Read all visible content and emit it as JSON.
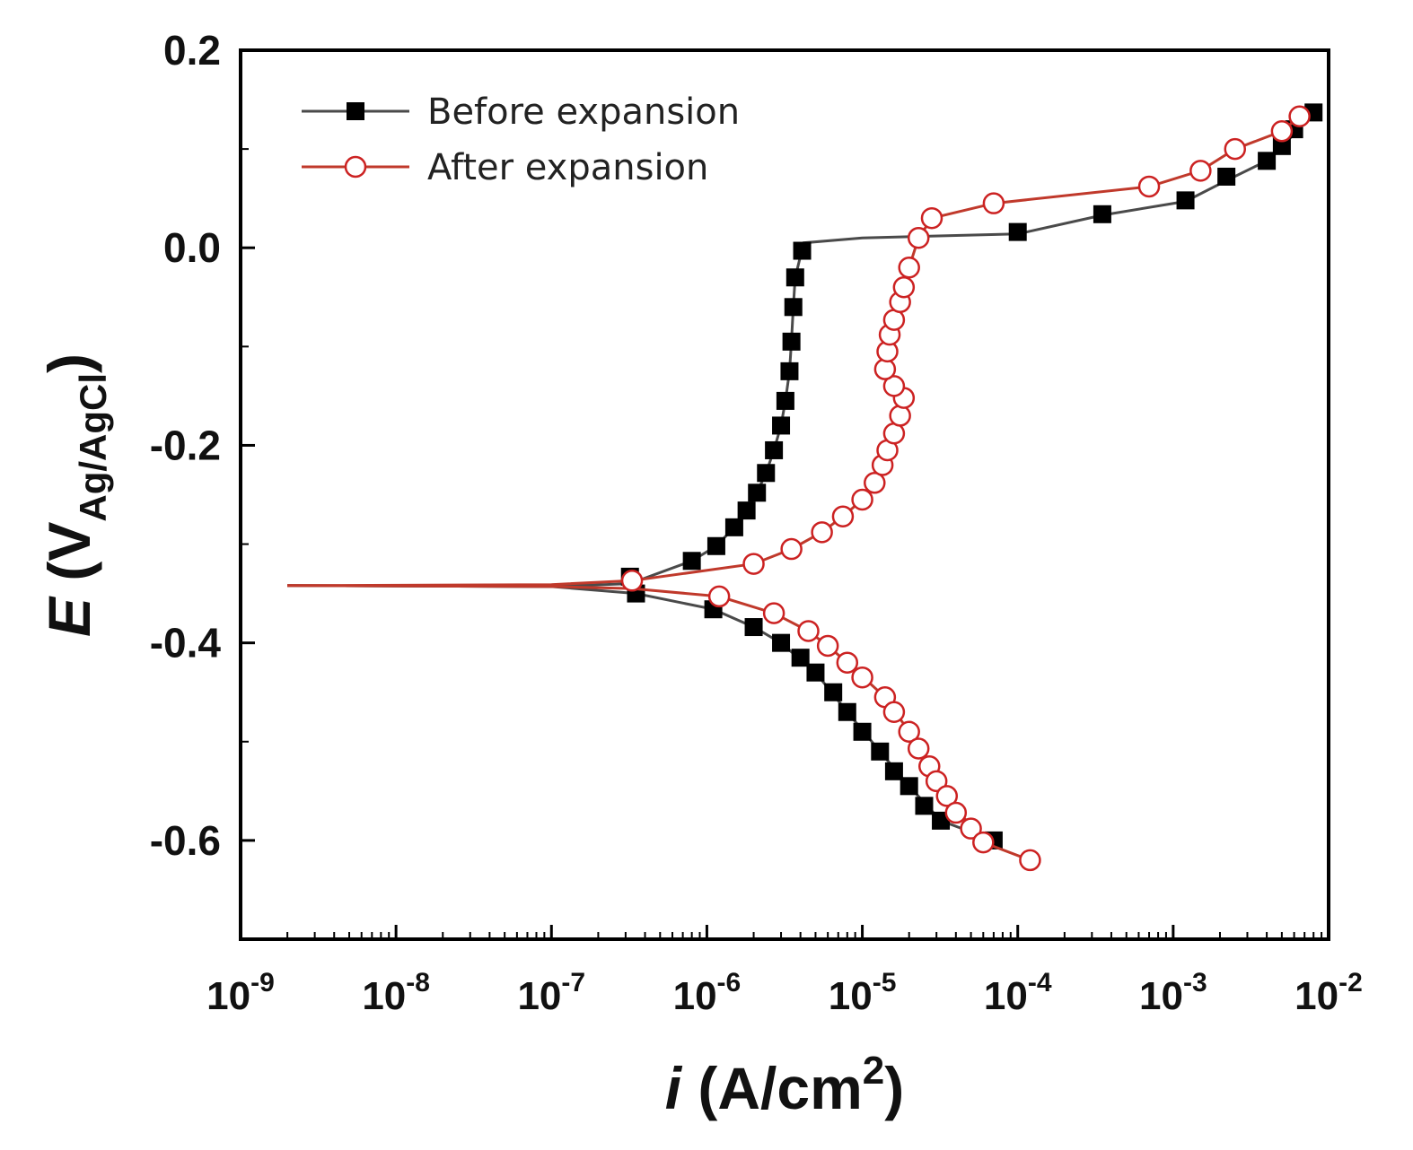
{
  "chart_data": {
    "type": "line",
    "title": "",
    "xscale": "log",
    "xlim": [
      1e-09,
      0.01
    ],
    "ylim": [
      -0.7,
      0.2
    ],
    "x_ticks": [
      1e-09,
      1e-08,
      1e-07,
      1e-06,
      1e-05,
      0.0001,
      0.001,
      0.01
    ],
    "x_tick_labels": [
      {
        "base": "10",
        "exp": "-9"
      },
      {
        "base": "10",
        "exp": "-8"
      },
      {
        "base": "10",
        "exp": "-7"
      },
      {
        "base": "10",
        "exp": "-6"
      },
      {
        "base": "10",
        "exp": "-5"
      },
      {
        "base": "10",
        "exp": "-4"
      },
      {
        "base": "10",
        "exp": "-3"
      },
      {
        "base": "10",
        "exp": "-2"
      }
    ],
    "y_ticks": [
      0.2,
      0.0,
      -0.2,
      -0.4,
      -0.6
    ],
    "y_tick_labels": [
      "0.2",
      "0.0",
      "-0.2",
      "-0.4",
      "-0.6"
    ],
    "xlabel": {
      "symbol": "i",
      "text": " (A/cm",
      "sup": "2",
      "close": ")"
    },
    "ylabel": {
      "symbol": "E",
      "text": " (V",
      "sub": "Ag/AgCl",
      "close": ")"
    },
    "legend_position": "top-left",
    "series": [
      {
        "name": "Before expansion",
        "color": "#000000",
        "line_color": "#4a4a4a",
        "marker": "filled-square",
        "line": [
          [
            2e-09,
            -0.342
          ],
          [
            1e-07,
            -0.343
          ],
          [
            3.2e-07,
            -0.34
          ],
          [
            8e-07,
            -0.317
          ],
          [
            1.15e-06,
            -0.302
          ],
          [
            1.5e-06,
            -0.283
          ],
          [
            1.8e-06,
            -0.266
          ],
          [
            2.1e-06,
            -0.248
          ],
          [
            2.4e-06,
            -0.228
          ],
          [
            2.7e-06,
            -0.205
          ],
          [
            3e-06,
            -0.18
          ],
          [
            3.2e-06,
            -0.155
          ],
          [
            3.4e-06,
            -0.125
          ],
          [
            3.5e-06,
            -0.095
          ],
          [
            3.6e-06,
            -0.06
          ],
          [
            3.7e-06,
            -0.03
          ],
          [
            4.2e-06,
            0.005
          ],
          [
            1e-05,
            0.01
          ],
          [
            0.0001,
            0.014
          ],
          [
            0.00035,
            0.033
          ],
          [
            0.0012,
            0.047
          ],
          [
            0.0022,
            0.068
          ],
          [
            0.004,
            0.088
          ],
          [
            0.006,
            0.115
          ],
          [
            0.008,
            0.138
          ]
        ],
        "line_lower": [
          [
            2e-09,
            -0.342
          ],
          [
            1e-07,
            -0.343
          ],
          [
            3.5e-07,
            -0.35
          ],
          [
            1.1e-06,
            -0.366
          ],
          [
            2e-06,
            -0.384
          ],
          [
            3e-06,
            -0.4
          ],
          [
            5e-06,
            -0.43
          ],
          [
            8e-06,
            -0.47
          ],
          [
            1.3e-05,
            -0.51
          ],
          [
            2e-05,
            -0.545
          ],
          [
            3.2e-05,
            -0.58
          ],
          [
            7e-05,
            -0.6
          ]
        ],
        "markers": [
          [
            3.2e-07,
            -0.333
          ],
          [
            3.5e-07,
            -0.35
          ],
          [
            8e-07,
            -0.317
          ],
          [
            1.1e-06,
            -0.366
          ],
          [
            1.15e-06,
            -0.302
          ],
          [
            1.5e-06,
            -0.283
          ],
          [
            1.8e-06,
            -0.266
          ],
          [
            2e-06,
            -0.384
          ],
          [
            2.1e-06,
            -0.248
          ],
          [
            2.4e-06,
            -0.228
          ],
          [
            2.7e-06,
            -0.205
          ],
          [
            3e-06,
            -0.4
          ],
          [
            3e-06,
            -0.18
          ],
          [
            3.2e-06,
            -0.155
          ],
          [
            3.4e-06,
            -0.125
          ],
          [
            3.5e-06,
            -0.095
          ],
          [
            3.6e-06,
            -0.06
          ],
          [
            3.7e-06,
            -0.03
          ],
          [
            4.1e-06,
            -0.003
          ],
          [
            4e-06,
            -0.415
          ],
          [
            5e-06,
            -0.43
          ],
          [
            6.5e-06,
            -0.45
          ],
          [
            8e-06,
            -0.47
          ],
          [
            1e-05,
            -0.49
          ],
          [
            1.3e-05,
            -0.51
          ],
          [
            1.6e-05,
            -0.53
          ],
          [
            2e-05,
            -0.545
          ],
          [
            2.5e-05,
            -0.565
          ],
          [
            3.2e-05,
            -0.58
          ],
          [
            7e-05,
            -0.6
          ],
          [
            0.0001,
            0.016
          ],
          [
            0.00035,
            0.034
          ],
          [
            0.0012,
            0.048
          ],
          [
            0.0022,
            0.072
          ],
          [
            0.004,
            0.088
          ],
          [
            0.005,
            0.103
          ],
          [
            0.006,
            0.12
          ],
          [
            0.008,
            0.137
          ]
        ]
      },
      {
        "name": "After expansion",
        "color": "#cc2222",
        "line_color": "#c0392b",
        "marker": "open-circle",
        "line": [
          [
            2e-09,
            -0.342
          ],
          [
            1e-07,
            -0.341
          ],
          [
            3.3e-07,
            -0.337
          ],
          [
            2e-06,
            -0.32
          ],
          [
            3.5e-06,
            -0.305
          ],
          [
            5.5e-06,
            -0.288
          ],
          [
            7.5e-06,
            -0.272
          ],
          [
            1e-05,
            -0.255
          ],
          [
            1.2e-05,
            -0.238
          ],
          [
            1.35e-05,
            -0.22
          ],
          [
            1.45e-05,
            -0.205
          ],
          [
            1.6e-05,
            -0.188
          ],
          [
            1.75e-05,
            -0.17
          ],
          [
            1.85e-05,
            -0.152
          ],
          [
            1.6e-05,
            -0.14
          ],
          [
            1.4e-05,
            -0.123
          ],
          [
            1.45e-05,
            -0.105
          ],
          [
            1.5e-05,
            -0.088
          ],
          [
            1.6e-05,
            -0.073
          ],
          [
            1.75e-05,
            -0.055
          ],
          [
            1.85e-05,
            -0.04
          ],
          [
            2e-05,
            -0.02
          ],
          [
            2.3e-05,
            0.01
          ],
          [
            2.8e-05,
            0.03
          ],
          [
            7e-05,
            0.045
          ],
          [
            0.0007,
            0.062
          ],
          [
            0.0015,
            0.078
          ],
          [
            0.0025,
            0.1
          ],
          [
            0.005,
            0.118
          ],
          [
            0.0065,
            0.133
          ]
        ],
        "line_lower": [
          [
            2e-09,
            -0.342
          ],
          [
            1e-07,
            -0.343
          ],
          [
            3.3e-07,
            -0.345
          ],
          [
            1.2e-06,
            -0.353
          ],
          [
            2.7e-06,
            -0.37
          ],
          [
            4.5e-06,
            -0.388
          ],
          [
            6e-06,
            -0.403
          ],
          [
            8e-06,
            -0.42
          ],
          [
            1.4e-05,
            -0.455
          ],
          [
            2e-05,
            -0.49
          ],
          [
            2.7e-05,
            -0.525
          ],
          [
            3.5e-05,
            -0.555
          ],
          [
            6e-05,
            -0.602
          ],
          [
            0.00012,
            -0.62
          ]
        ],
        "markers": [
          [
            3.3e-07,
            -0.337
          ],
          [
            1.2e-06,
            -0.353
          ],
          [
            2e-06,
            -0.32
          ],
          [
            2.7e-06,
            -0.37
          ],
          [
            3.5e-06,
            -0.305
          ],
          [
            4.5e-06,
            -0.388
          ],
          [
            5.5e-06,
            -0.288
          ],
          [
            6e-06,
            -0.403
          ],
          [
            7.5e-06,
            -0.272
          ],
          [
            8e-06,
            -0.42
          ],
          [
            1e-05,
            -0.255
          ],
          [
            1e-05,
            -0.435
          ],
          [
            1.2e-05,
            -0.238
          ],
          [
            1.35e-05,
            -0.22
          ],
          [
            1.4e-05,
            -0.455
          ],
          [
            1.45e-05,
            -0.205
          ],
          [
            1.6e-05,
            -0.188
          ],
          [
            1.6e-05,
            -0.47
          ],
          [
            1.75e-05,
            -0.17
          ],
          [
            1.85e-05,
            -0.152
          ],
          [
            1.6e-05,
            -0.14
          ],
          [
            1.4e-05,
            -0.123
          ],
          [
            1.45e-05,
            -0.105
          ],
          [
            1.5e-05,
            -0.088
          ],
          [
            1.6e-05,
            -0.073
          ],
          [
            1.75e-05,
            -0.055
          ],
          [
            1.85e-05,
            -0.04
          ],
          [
            2e-05,
            -0.02
          ],
          [
            2e-05,
            -0.49
          ],
          [
            2.3e-05,
            0.01
          ],
          [
            2.3e-05,
            -0.507
          ],
          [
            2.7e-05,
            -0.525
          ],
          [
            2.8e-05,
            0.03
          ],
          [
            3e-05,
            -0.54
          ],
          [
            3.5e-05,
            -0.555
          ],
          [
            4e-05,
            -0.572
          ],
          [
            5e-05,
            -0.588
          ],
          [
            6e-05,
            -0.602
          ],
          [
            7e-05,
            0.045
          ],
          [
            0.00012,
            -0.62
          ],
          [
            0.0007,
            0.062
          ],
          [
            0.0015,
            0.078
          ],
          [
            0.0025,
            0.1
          ],
          [
            0.005,
            0.118
          ],
          [
            0.0065,
            0.133
          ]
        ]
      }
    ]
  }
}
